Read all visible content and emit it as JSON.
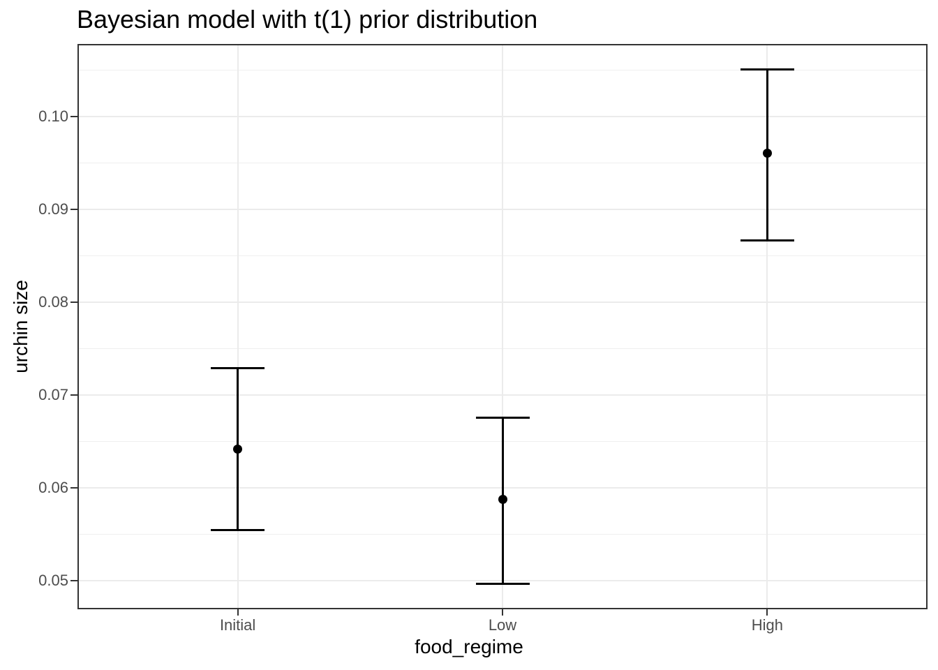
{
  "chart_data": {
    "type": "scatter",
    "subtype": "point-with-errorbar",
    "title": "Bayesian model with t(1) prior distribution",
    "xlabel": "food_regime",
    "ylabel": "urchin size",
    "categories": [
      "Initial",
      "Low",
      "High"
    ],
    "points": [
      {
        "category": "Initial",
        "mean": 0.0642,
        "lower": 0.0555,
        "upper": 0.0729
      },
      {
        "category": "Low",
        "mean": 0.0588,
        "lower": 0.0497,
        "upper": 0.0676
      },
      {
        "category": "High",
        "mean": 0.0961,
        "lower": 0.0867,
        "upper": 0.1051
      }
    ],
    "y_ticks": [
      0.05,
      0.06,
      0.07,
      0.08,
      0.09,
      0.1
    ],
    "y_tick_labels": [
      "0.05",
      "0.06",
      "0.07",
      "0.08",
      "0.09",
      "0.10"
    ],
    "y_minor_ticks": [
      0.055,
      0.065,
      0.075,
      0.085,
      0.095,
      0.105
    ],
    "ylim": [
      0.0471,
      0.1077
    ],
    "grid": true,
    "legend": "none",
    "colors": {
      "point": "#000000",
      "errorbar": "#000000",
      "grid_major": "#ebebeb",
      "grid_minor": "#efefef",
      "panel_border": "#333333",
      "tick": "#333333",
      "tick_label": "#4d4d4d",
      "title": "#000000",
      "axis_title": "#000000",
      "background": "#ffffff"
    }
  }
}
